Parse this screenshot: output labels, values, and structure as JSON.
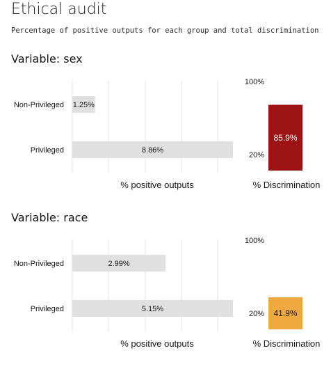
{
  "header": {
    "title": "Ethical audit",
    "subtitle": "Percentage of positive outputs for each group and total discrimination"
  },
  "chart_data": [
    {
      "type": "bar",
      "orientation": "horizontal",
      "title": "Variable: sex",
      "categories": [
        "Non-Privileged",
        "Privileged"
      ],
      "values": [
        1.25,
        8.86
      ],
      "value_labels": [
        "1.25%",
        "8.86%"
      ],
      "xlabel": "% positive outputs",
      "xlim": [
        0,
        8.86
      ],
      "grid": true,
      "bar_color": "#e0e0e0",
      "discrimination": {
        "value": 85.9,
        "label": "85.9%",
        "ticks": [
          "100%",
          "20%"
        ],
        "xlabel": "% Discrimination",
        "color": "#9b1313",
        "text_color": "#ffffff"
      }
    },
    {
      "type": "bar",
      "orientation": "horizontal",
      "title": "Variable: race",
      "categories": [
        "Non-Privileged",
        "Privileged"
      ],
      "values": [
        2.99,
        5.15
      ],
      "value_labels": [
        "2.99%",
        "5.15%"
      ],
      "xlabel": "% positive outputs",
      "xlim": [
        0,
        5.15
      ],
      "grid": true,
      "bar_color": "#e0e0e0",
      "discrimination": {
        "value": 41.9,
        "label": "41.9%",
        "ticks": [
          "100%",
          "20%"
        ],
        "xlabel": "% Discrimination",
        "color": "#f0a841",
        "text_color": "#161616"
      }
    }
  ]
}
